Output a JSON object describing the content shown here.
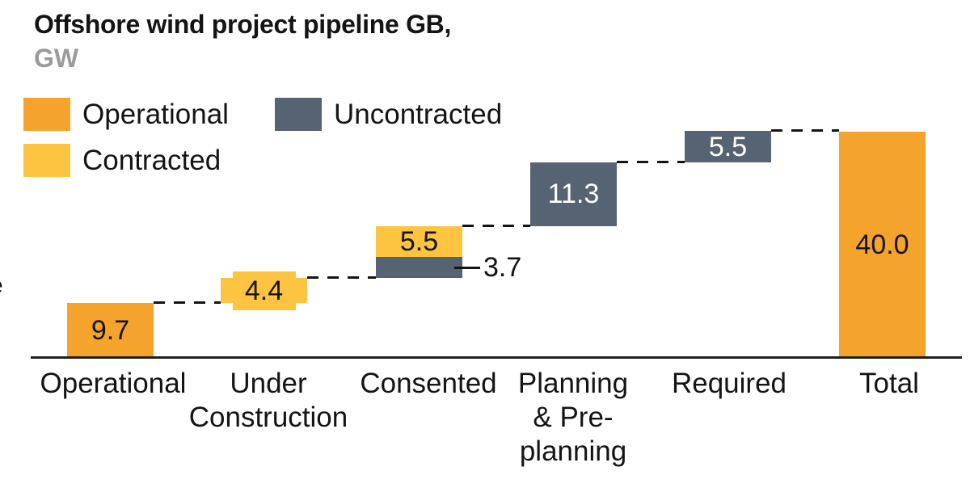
{
  "title": "Offshore wind project pipeline GB,",
  "subtitle": "GW",
  "edge_artifact_text": "e",
  "series_colors": {
    "Operational": "#F4A32C",
    "Contracted": "#FCC440",
    "Uncontracted": "#566372"
  },
  "legend": {
    "items": [
      {
        "label": "Operational",
        "series": "Operational"
      },
      {
        "label": "Uncontracted",
        "series": "Uncontracted"
      },
      {
        "label": "Contracted",
        "series": "Contracted"
      }
    ]
  },
  "chart_data": {
    "type": "bar",
    "subtype": "waterfall",
    "title": "Offshore wind project pipeline GB,",
    "ylabel": "GW",
    "ylim": [
      0,
      40.1
    ],
    "grid": false,
    "legend_position": "top-left",
    "connector_style": "dashed",
    "categories": [
      "Operational",
      "Under Construction",
      "Consented",
      "Planning & Pre-planning",
      "Required",
      "Total"
    ],
    "axis_label_lines": [
      [
        "Operational"
      ],
      [
        "Under",
        "Construction"
      ],
      [
        "Consented"
      ],
      [
        "Planning",
        "& Pre-",
        "planning"
      ],
      [
        "Required"
      ],
      [
        "Total"
      ]
    ],
    "columns": [
      {
        "category": "Operational",
        "start": 0,
        "segments": [
          {
            "series": "Operational",
            "value": 9.7,
            "label": "9.7",
            "label_pos": "inside-dark"
          }
        ]
      },
      {
        "category": "Under Construction",
        "start": 9.7,
        "segments": [
          {
            "series": "Contracted",
            "value": 4.4,
            "label": "4.4",
            "label_pos": "boxed"
          }
        ]
      },
      {
        "category": "Consented",
        "start": 14.1,
        "segments": [
          {
            "series": "Uncontracted",
            "value": 3.7,
            "label": "3.7",
            "label_pos": "leader-right"
          },
          {
            "series": "Contracted",
            "value": 5.5,
            "label": "5.5",
            "label_pos": "inside-dark"
          }
        ]
      },
      {
        "category": "Planning & Pre-planning",
        "start": 23.3,
        "segments": [
          {
            "series": "Uncontracted",
            "value": 11.3,
            "label": "11.3",
            "label_pos": "inside-light"
          }
        ]
      },
      {
        "category": "Required",
        "start": 34.6,
        "segments": [
          {
            "series": "Uncontracted",
            "value": 5.5,
            "label": "5.5",
            "label_pos": "inside-light"
          }
        ]
      },
      {
        "category": "Total",
        "start": 0,
        "segments": [
          {
            "series": "Operational",
            "value": 40.0,
            "label": "40.0",
            "label_pos": "inside-dark"
          }
        ]
      }
    ]
  }
}
